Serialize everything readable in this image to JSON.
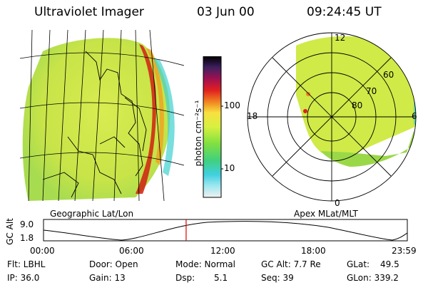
{
  "header": {
    "instrument": "Ultraviolet Imager",
    "date": "03 Jun 00",
    "time": "09:24:45 UT"
  },
  "colorbar": {
    "unit_label": "photon cm⁻²s⁻¹",
    "ticks": [
      "100",
      "10"
    ]
  },
  "left_map": {
    "caption": "Geographic Lat/Lon"
  },
  "right_map": {
    "caption": "Apex MLat/MLT",
    "lat_labels": [
      "60",
      "70",
      "80"
    ],
    "mlt_labels": {
      "top": "12",
      "left": "18",
      "right": "6",
      "bottom": "0"
    }
  },
  "altitude_plot": {
    "ylabel": "GC Alt",
    "yticks": [
      "9.0",
      "1.8"
    ],
    "xticks": [
      "00:00",
      "06:00",
      "12:00",
      "18:00",
      "23:59"
    ],
    "current_time_marker_fraction": 0.392
  },
  "status": {
    "flt": "Flt: LBHL",
    "ip": "IP: 36.0",
    "door": "Door: Open",
    "gain": "Gain: 13",
    "mode": "Mode: Normal",
    "dsp": "Dsp:",
    "dsp_val": "5.1",
    "gcalt": "GC Alt: 7.7 Re",
    "seq": "Seq: 39",
    "glat": "GLat:",
    "glat_val": "49.5",
    "glon": "GLon: 339.2"
  },
  "colors": {
    "map_fill": "#c8e84a",
    "map_fill_light": "#e6f060",
    "glow_red": "#d02010",
    "glow_orange": "#f0a020",
    "cyan_edge": "#40d0d0",
    "marker_red": "#e00000"
  }
}
